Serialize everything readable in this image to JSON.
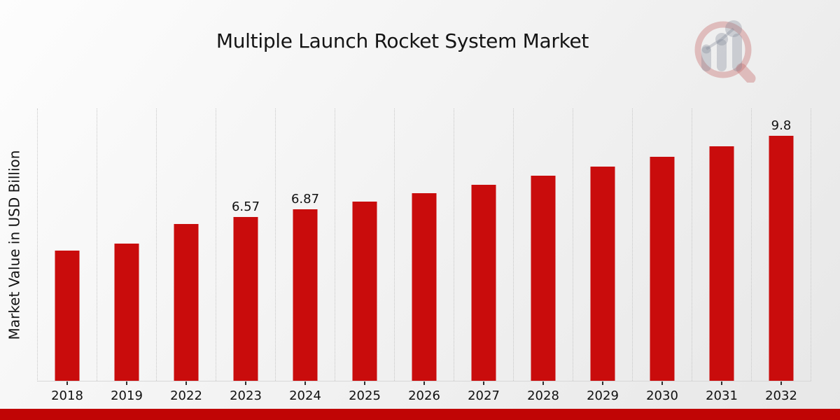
{
  "page": {
    "footer_bar_color": "#c00505"
  },
  "logo": {
    "ring_color": "rgba(198,104,104,0.38)",
    "bars_color": "rgba(128,133,148,0.32)"
  },
  "chart_data": {
    "type": "bar",
    "title": "Multiple Launch Rocket System Market",
    "xlabel": "",
    "ylabel": "Market Value in USD Billion",
    "categories": [
      "2018",
      "2019",
      "2022",
      "2023",
      "2024",
      "2025",
      "2026",
      "2027",
      "2028",
      "2029",
      "2030",
      "2031",
      "2032"
    ],
    "values": [
      5.2,
      5.48,
      6.29,
      6.57,
      6.87,
      7.18,
      7.51,
      7.85,
      8.21,
      8.58,
      8.97,
      9.38,
      9.8
    ],
    "data_labels": [
      "",
      "",
      "",
      "6.57",
      "6.87",
      "",
      "",
      "",
      "",
      "",
      "",
      "",
      "9.8"
    ],
    "ylim": [
      0,
      10.9
    ],
    "bar_color": "#c90c0c",
    "grid": "vertical dotted lines between categories",
    "legend": "none"
  }
}
